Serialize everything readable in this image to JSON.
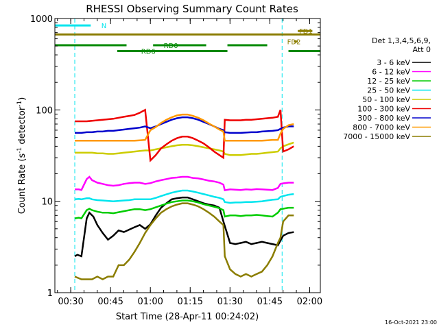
{
  "chart_data": {
    "type": "line",
    "title": "RHESSI Observing Summary Count Rates",
    "xlabel": "Start Time (28-Apr-11 00:24:02)",
    "ylabel_main": "Count Rate (s",
    "ylabel_sup1": "-1",
    "ylabel_mid": " detector",
    "ylabel_sup2": "-1",
    "ylabel_end": ")",
    "x_unit": "minutes since 00:24:02",
    "xlim": [
      0,
      100
    ],
    "ylim": [
      1,
      1000
    ],
    "yscale": "log",
    "xtick_labels": [
      "00:30",
      "00:45",
      "01:00",
      "01:15",
      "01:30",
      "01:45",
      "02:00"
    ],
    "xtick_values": [
      5.97,
      20.97,
      35.97,
      50.97,
      65.97,
      80.97,
      95.97
    ],
    "ytick_labels": [
      "1",
      "10",
      "100",
      "1000"
    ],
    "ytick_values": [
      1,
      10,
      100,
      1000
    ],
    "legend_header": [
      "Det 1,3,4,5,6,9,",
      "Att 0"
    ],
    "legend_position": "right",
    "footer_date": "16-Oct-2021 23:00",
    "night_intervals": [
      [
        0,
        7.5
      ],
      [
        85.6,
        100
      ]
    ],
    "bars": [
      {
        "label": "N",
        "color": "#00e5ee",
        "y": 840,
        "segments": [
          [
            0,
            13.5
          ]
        ]
      },
      {
        "label": "FD1",
        "color": "#8b7d00",
        "y": 730,
        "segments": [
          [
            91.5,
            97
          ]
        ]
      },
      {
        "label": "",
        "color": "#8b7d00",
        "y": 670,
        "segments": [
          [
            0,
            100
          ]
        ]
      },
      {
        "label": "FD2",
        "color": "#8b7d00",
        "y": 560,
        "segments": [
          [
            90,
            91.5
          ]
        ]
      },
      {
        "label": "RD0",
        "color": "#008800",
        "y": 510,
        "segments": [
          [
            0,
            27
          ],
          [
            37,
            57
          ],
          [
            65,
            80
          ]
        ]
      },
      {
        "label": "RD6",
        "color": "#008800",
        "y": 440,
        "segments": [
          [
            23.5,
            65
          ],
          [
            88,
            100
          ]
        ]
      }
    ],
    "bar_label_pos": [
      {
        "text": "N",
        "x": 17.5,
        "y": 840
      },
      {
        "text": "FD1",
        "x": 92,
        "y": 730
      },
      {
        "text": "FD2",
        "x": 87.5,
        "y": 560
      },
      {
        "text": "RD0",
        "x": 41,
        "y": 510
      },
      {
        "text": "RD6",
        "x": 32.5,
        "y": 440
      }
    ],
    "series": [
      {
        "name": "3 - 6 keV",
        "color": "#000000",
        "x": [
          7.5,
          8.5,
          10,
          12,
          13,
          14.5,
          16,
          18,
          20,
          22,
          24,
          26,
          28,
          30,
          32,
          34,
          36,
          38,
          40,
          42,
          44,
          46,
          48,
          50,
          52,
          54,
          56,
          58,
          60,
          62,
          63.5,
          66,
          68,
          70,
          72,
          74,
          76,
          78,
          80,
          82,
          84,
          86,
          88,
          90
        ],
        "y": [
          2.5,
          2.6,
          2.5,
          6.5,
          7.5,
          6.8,
          5.5,
          4.5,
          3.8,
          4.2,
          4.8,
          4.6,
          4.9,
          5.2,
          5.5,
          5,
          5.6,
          7,
          8.5,
          9.5,
          10.5,
          10.8,
          11,
          11,
          10.5,
          10,
          9.5,
          9.2,
          9,
          8.5,
          6,
          3.5,
          3.4,
          3.5,
          3.6,
          3.4,
          3.5,
          3.6,
          3.5,
          3.4,
          3.3,
          4.2,
          4.5,
          4.6
        ]
      },
      {
        "name": "6 - 12 keV",
        "color": "#ff00ff",
        "x": [
          7.5,
          9,
          10,
          12,
          13,
          14,
          16,
          18,
          20,
          22,
          24,
          26,
          28,
          30,
          32,
          34,
          36,
          38,
          40,
          42,
          44,
          46,
          48,
          50,
          52,
          54,
          56,
          58,
          60,
          62,
          63.5,
          64,
          66,
          68,
          70,
          72,
          74,
          76,
          78,
          80,
          82,
          84,
          85,
          86,
          88,
          90
        ],
        "y": [
          13.5,
          13.5,
          13.3,
          17.5,
          18.5,
          17,
          16,
          15.5,
          15,
          14.8,
          15,
          15.5,
          15.8,
          16,
          16,
          15.5,
          15.8,
          16.5,
          17,
          17.5,
          18,
          18.2,
          18.5,
          18.5,
          18,
          17.8,
          17.3,
          16.8,
          16.5,
          16,
          15.2,
          13.2,
          13.5,
          13.4,
          13.3,
          13.5,
          13.4,
          13.6,
          13.5,
          13.4,
          13.3,
          14,
          15.5,
          15.7,
          16,
          16
        ]
      },
      {
        "name": "12 - 25 keV",
        "color": "#00cc00",
        "x": [
          7.5,
          9,
          10,
          12,
          13,
          14,
          16,
          18,
          20,
          22,
          24,
          26,
          28,
          30,
          32,
          34,
          36,
          38,
          40,
          42,
          44,
          46,
          48,
          50,
          52,
          54,
          56,
          58,
          60,
          62,
          63.5,
          64,
          66,
          68,
          70,
          72,
          74,
          76,
          78,
          80,
          82,
          84,
          85,
          86,
          88,
          90
        ],
        "y": [
          6.5,
          6.6,
          6.5,
          8,
          8.3,
          8,
          7.7,
          7.5,
          7.5,
          7.4,
          7.6,
          7.8,
          8,
          8.2,
          8.2,
          8,
          8.2,
          8.6,
          9,
          9.4,
          9.8,
          10,
          10.2,
          10.2,
          10,
          9.7,
          9.3,
          9,
          8.7,
          8.4,
          8,
          6.8,
          7,
          7,
          6.9,
          7,
          7,
          7.1,
          7,
          6.9,
          6.8,
          7.5,
          8.2,
          8.3,
          8.5,
          8.5
        ]
      },
      {
        "name": "25 - 50 keV",
        "color": "#00e5ee",
        "x": [
          7.5,
          9,
          10,
          12,
          13,
          14,
          16,
          18,
          20,
          22,
          24,
          26,
          28,
          30,
          32,
          34,
          36,
          38,
          40,
          42,
          44,
          46,
          48,
          50,
          52,
          54,
          56,
          58,
          60,
          62,
          63.5,
          64,
          66,
          68,
          70,
          72,
          74,
          76,
          78,
          80,
          82,
          84,
          85,
          86,
          88,
          90
        ],
        "y": [
          10.5,
          10.6,
          10.5,
          10.8,
          10.8,
          10.5,
          10.3,
          10.2,
          10.1,
          10,
          10.1,
          10.2,
          10.3,
          10.5,
          10.5,
          10.5,
          10.5,
          10.9,
          11.4,
          11.9,
          12.4,
          12.8,
          13.1,
          13.1,
          12.8,
          12.4,
          12,
          11.6,
          11.2,
          10.9,
          10.5,
          9.8,
          9.6,
          9.7,
          9.7,
          9.8,
          9.8,
          9.9,
          10,
          10.2,
          10.4,
          10.5,
          11.2,
          11.4,
          11.8,
          12
        ]
      },
      {
        "name": "50 - 100 keV",
        "color": "#cccc00",
        "x": [
          7.5,
          10,
          12,
          14,
          16,
          18,
          20,
          22,
          24,
          26,
          28,
          30,
          32,
          34,
          36,
          38,
          40,
          42,
          44,
          46,
          48,
          50,
          52,
          54,
          56,
          58,
          60,
          62,
          63.5,
          64,
          66,
          68,
          70,
          72,
          74,
          76,
          78,
          80,
          82,
          84,
          85,
          86,
          88,
          90
        ],
        "y": [
          34,
          34,
          34,
          34,
          33.5,
          33.5,
          33,
          33,
          33.5,
          34,
          34.5,
          35,
          35.5,
          36,
          36,
          37,
          38,
          39,
          40,
          41,
          41.5,
          41.5,
          41,
          40,
          39,
          38,
          37,
          36,
          35,
          33,
          32,
          32,
          32,
          32.5,
          33,
          33,
          33.5,
          34,
          34.5,
          35,
          38,
          40,
          42,
          44
        ]
      },
      {
        "name": "100 - 300 keV",
        "color": "#ee0000",
        "x": [
          7.5,
          10,
          12,
          14,
          16,
          18,
          20,
          22,
          24,
          26,
          28,
          30,
          32,
          34,
          36,
          38,
          40,
          42,
          44,
          46,
          48,
          50,
          52,
          54,
          56,
          58,
          60,
          62,
          63.5,
          64,
          66,
          68,
          70,
          72,
          74,
          76,
          78,
          80,
          82,
          84,
          85,
          86,
          88,
          90
        ],
        "y": [
          75,
          75,
          75,
          76,
          77,
          78,
          79,
          80,
          82,
          84,
          86,
          88,
          93,
          100,
          28,
          32,
          38,
          42,
          46,
          49,
          51,
          51,
          49,
          46,
          43,
          39,
          35,
          32,
          30,
          78,
          77,
          77,
          77,
          78,
          78,
          79,
          80,
          81,
          82,
          84,
          100,
          35,
          37,
          40
        ]
      },
      {
        "name": "300 - 800 keV",
        "color": "#0000cc",
        "x": [
          7.5,
          10,
          12,
          14,
          16,
          18,
          20,
          22,
          24,
          26,
          28,
          30,
          32,
          34,
          36,
          38,
          40,
          42,
          44,
          46,
          48,
          50,
          52,
          54,
          56,
          58,
          60,
          62,
          63.5,
          64,
          66,
          68,
          70,
          72,
          74,
          76,
          78,
          80,
          82,
          84,
          85,
          86,
          88,
          90
        ],
        "y": [
          56,
          56,
          57,
          57,
          58,
          58,
          59,
          59,
          60,
          61,
          62,
          63,
          64,
          66,
          63,
          66,
          70,
          74,
          78,
          81,
          83,
          83,
          81,
          78,
          74,
          70,
          66,
          62,
          60,
          57,
          56,
          56,
          56,
          56.5,
          57,
          57,
          58,
          58.5,
          59,
          60,
          62,
          64,
          66,
          66
        ]
      },
      {
        "name": "800 - 7000 keV",
        "color": "#ff9900",
        "x": [
          7.5,
          10,
          12,
          14,
          16,
          18,
          20,
          22,
          24,
          26,
          28,
          30,
          32,
          34,
          36,
          38,
          40,
          42,
          44,
          46,
          48,
          50,
          52,
          54,
          56,
          58,
          60,
          62,
          63.5,
          64,
          66,
          68,
          70,
          72,
          74,
          76,
          78,
          80,
          82,
          84,
          85,
          86,
          88,
          90
        ],
        "y": [
          46,
          46,
          46,
          46,
          46,
          46,
          46,
          46,
          46,
          46,
          46,
          46,
          46.5,
          47,
          60,
          65,
          72,
          78,
          83,
          87,
          89,
          89,
          86,
          82,
          77,
          71,
          66,
          61,
          58,
          46,
          46,
          46,
          46,
          46,
          46,
          46,
          46,
          46.5,
          47,
          47,
          55,
          62,
          68,
          70
        ]
      },
      {
        "name": "7000 - 15000 keV",
        "color": "#8b7d00",
        "x": [
          7.5,
          10,
          12,
          14,
          16,
          18,
          20,
          22,
          24,
          26,
          28,
          30,
          32,
          34,
          36,
          38,
          40,
          42,
          44,
          46,
          48,
          50,
          52,
          54,
          56,
          58,
          60,
          62,
          63.5,
          64,
          66,
          68,
          70,
          72,
          74,
          76,
          78,
          80,
          82,
          84,
          85,
          86,
          88,
          90
        ],
        "y": [
          1.5,
          1.4,
          1.4,
          1.4,
          1.5,
          1.4,
          1.5,
          1.5,
          2,
          2,
          2.3,
          2.8,
          3.5,
          4.5,
          5.5,
          6.5,
          7.5,
          8.2,
          8.8,
          9.2,
          9.5,
          9.5,
          9.2,
          8.8,
          8.2,
          7.5,
          6.8,
          6,
          5.5,
          2.5,
          1.8,
          1.6,
          1.5,
          1.6,
          1.5,
          1.6,
          1.7,
          2,
          2.5,
          3.5,
          4,
          6,
          7,
          7
        ]
      }
    ]
  }
}
